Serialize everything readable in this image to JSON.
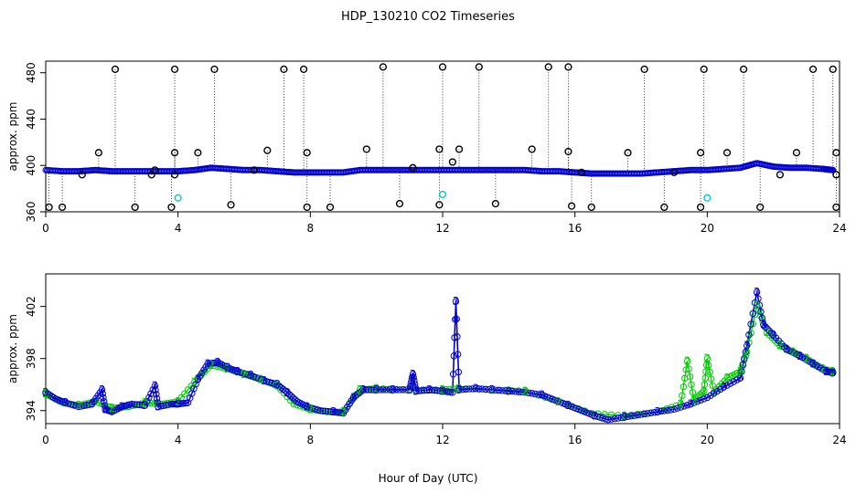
{
  "figure": {
    "title": "HDP_130210  CO2 Timeseries",
    "xlabel": "Hour of Day (UTC)"
  },
  "chart_data": [
    {
      "type": "scatter",
      "panel": "top",
      "ylabel": "approx. ppm",
      "xlim": [
        0,
        24
      ],
      "ylim": [
        360,
        490
      ],
      "xticks": [
        "0",
        "4",
        "8",
        "12",
        "16",
        "20",
        "24"
      ],
      "yticks": [
        "360",
        "400",
        "440",
        "480"
      ],
      "grid": false,
      "baseline": [
        [
          0.0,
          396
        ],
        [
          0.5,
          395
        ],
        [
          1.0,
          395
        ],
        [
          1.5,
          396
        ],
        [
          2.0,
          395
        ],
        [
          2.5,
          395
        ],
        [
          3.0,
          395
        ],
        [
          3.5,
          395
        ],
        [
          4.0,
          395
        ],
        [
          4.5,
          396
        ],
        [
          5.0,
          398
        ],
        [
          5.5,
          397
        ],
        [
          6.0,
          396
        ],
        [
          6.5,
          396
        ],
        [
          7.0,
          395
        ],
        [
          7.5,
          394
        ],
        [
          8.0,
          394
        ],
        [
          8.5,
          394
        ],
        [
          9.0,
          394
        ],
        [
          9.5,
          396
        ],
        [
          10.0,
          396
        ],
        [
          10.5,
          396
        ],
        [
          11.0,
          396
        ],
        [
          11.5,
          396
        ],
        [
          12.0,
          396
        ],
        [
          12.5,
          396
        ],
        [
          13.0,
          396
        ],
        [
          13.5,
          396
        ],
        [
          14.0,
          396
        ],
        [
          14.5,
          396
        ],
        [
          15.0,
          395
        ],
        [
          15.5,
          395
        ],
        [
          16.0,
          394
        ],
        [
          16.5,
          393
        ],
        [
          17.0,
          393
        ],
        [
          17.5,
          393
        ],
        [
          18.0,
          393
        ],
        [
          18.5,
          394
        ],
        [
          19.0,
          395
        ],
        [
          19.5,
          396
        ],
        [
          20.0,
          396
        ],
        [
          20.5,
          397
        ],
        [
          21.0,
          398
        ],
        [
          21.5,
          402
        ],
        [
          22.0,
          399
        ],
        [
          22.5,
          398
        ],
        [
          23.0,
          398
        ],
        [
          23.5,
          397
        ],
        [
          23.8,
          396
        ]
      ],
      "outliers": [
        [
          0.1,
          364
        ],
        [
          0.5,
          364
        ],
        [
          1.1,
          392
        ],
        [
          1.6,
          411
        ],
        [
          2.1,
          483
        ],
        [
          2.7,
          364
        ],
        [
          3.2,
          392
        ],
        [
          3.3,
          396
        ],
        [
          3.8,
          364
        ],
        [
          3.9,
          392
        ],
        [
          3.9,
          411
        ],
        [
          3.9,
          483
        ],
        [
          4.6,
          411
        ],
        [
          5.1,
          483
        ],
        [
          5.6,
          366
        ],
        [
          6.3,
          396
        ],
        [
          6.7,
          413
        ],
        [
          7.2,
          483
        ],
        [
          7.8,
          483
        ],
        [
          7.9,
          411
        ],
        [
          7.9,
          364
        ],
        [
          8.6,
          364
        ],
        [
          9.7,
          414
        ],
        [
          10.2,
          485
        ],
        [
          10.7,
          367
        ],
        [
          11.1,
          398
        ],
        [
          11.9,
          366
        ],
        [
          11.9,
          414
        ],
        [
          12.0,
          485
        ],
        [
          12.3,
          403
        ],
        [
          12.5,
          414
        ],
        [
          13.1,
          485
        ],
        [
          13.6,
          367
        ],
        [
          14.7,
          414
        ],
        [
          15.2,
          485
        ],
        [
          15.8,
          485
        ],
        [
          15.8,
          412
        ],
        [
          15.9,
          365
        ],
        [
          16.2,
          394
        ],
        [
          16.5,
          364
        ],
        [
          17.6,
          411
        ],
        [
          18.1,
          483
        ],
        [
          18.7,
          364
        ],
        [
          19.0,
          394
        ],
        [
          19.8,
          364
        ],
        [
          19.8,
          411
        ],
        [
          19.9,
          483
        ],
        [
          20.6,
          411
        ],
        [
          21.1,
          483
        ],
        [
          21.6,
          364
        ],
        [
          22.2,
          392
        ],
        [
          22.7,
          411
        ],
        [
          23.2,
          483
        ],
        [
          23.8,
          483
        ],
        [
          23.9,
          411
        ],
        [
          23.9,
          392
        ],
        [
          23.9,
          364
        ]
      ],
      "cyan_points": [
        [
          4.0,
          372
        ],
        [
          12.0,
          375
        ],
        [
          20.0,
          372
        ]
      ]
    },
    {
      "type": "line",
      "panel": "bottom",
      "ylabel": "approx. ppm",
      "xlim": [
        0,
        24
      ],
      "ylim": [
        393,
        404.5
      ],
      "xticks": [
        "0",
        "4",
        "8",
        "12",
        "16",
        "20",
        "24"
      ],
      "yticks": [
        "394",
        "398",
        "402"
      ],
      "grid": false,
      "marker_labels": [
        "2",
        "3"
      ],
      "series": [
        {
          "marker": "3",
          "points": [
            [
              0.0,
              395.4
            ],
            [
              0.3,
              394.9
            ],
            [
              0.6,
              394.6
            ],
            [
              1.0,
              394.3
            ],
            [
              1.4,
              394.5
            ],
            [
              1.7,
              395.6
            ],
            [
              1.8,
              394.1
            ],
            [
              2.0,
              393.9
            ],
            [
              2.3,
              394.3
            ],
            [
              2.6,
              394.5
            ],
            [
              3.0,
              394.4
            ],
            [
              3.3,
              395.9
            ],
            [
              3.4,
              394.3
            ],
            [
              3.8,
              394.5
            ],
            [
              4.0,
              394.5
            ],
            [
              4.3,
              394.6
            ],
            [
              4.6,
              396.4
            ],
            [
              4.9,
              397.6
            ],
            [
              5.2,
              397.7
            ],
            [
              5.5,
              397.3
            ],
            [
              5.8,
              397.0
            ],
            [
              6.2,
              396.7
            ],
            [
              6.6,
              396.3
            ],
            [
              7.0,
              396.0
            ],
            [
              7.3,
              395.4
            ],
            [
              7.6,
              394.7
            ],
            [
              7.9,
              394.3
            ],
            [
              8.3,
              394.0
            ],
            [
              8.7,
              393.9
            ],
            [
              9.0,
              393.8
            ],
            [
              9.3,
              395.0
            ],
            [
              9.6,
              395.6
            ],
            [
              10.0,
              395.6
            ],
            [
              10.5,
              395.6
            ],
            [
              11.0,
              395.6
            ],
            [
              11.1,
              396.8
            ],
            [
              11.2,
              395.5
            ],
            [
              11.6,
              395.6
            ],
            [
              12.0,
              395.5
            ],
            [
              12.3,
              395.4
            ],
            [
              12.4,
              402.4
            ],
            [
              12.5,
              395.6
            ],
            [
              13.0,
              395.7
            ],
            [
              13.5,
              395.6
            ],
            [
              14.0,
              395.5
            ],
            [
              14.5,
              395.4
            ],
            [
              15.0,
              395.2
            ],
            [
              15.4,
              394.8
            ],
            [
              15.8,
              394.4
            ],
            [
              16.2,
              394.0
            ],
            [
              16.6,
              393.6
            ],
            [
              17.0,
              393.3
            ],
            [
              17.5,
              393.5
            ],
            [
              18.0,
              393.7
            ],
            [
              18.5,
              393.9
            ],
            [
              19.0,
              394.1
            ],
            [
              19.5,
              394.5
            ],
            [
              20.0,
              395.0
            ],
            [
              20.5,
              395.8
            ],
            [
              21.0,
              396.5
            ],
            [
              21.2,
              399.0
            ],
            [
              21.5,
              403.1
            ],
            [
              21.7,
              400.6
            ],
            [
              22.0,
              399.8
            ],
            [
              22.4,
              398.7
            ],
            [
              22.8,
              398.2
            ],
            [
              23.2,
              397.6
            ],
            [
              23.6,
              397.0
            ],
            [
              23.8,
              396.9
            ]
          ]
        },
        {
          "marker": "2",
          "points": [
            [
              0.0,
              395.3
            ],
            [
              0.5,
              394.6
            ],
            [
              1.0,
              394.4
            ],
            [
              1.5,
              394.7
            ],
            [
              2.0,
              394.2
            ],
            [
              2.5,
              394.3
            ],
            [
              3.0,
              394.6
            ],
            [
              3.5,
              394.5
            ],
            [
              4.0,
              394.7
            ],
            [
              4.5,
              396.2
            ],
            [
              5.0,
              397.5
            ],
            [
              5.5,
              397.2
            ],
            [
              6.0,
              396.8
            ],
            [
              6.5,
              396.4
            ],
            [
              7.0,
              395.9
            ],
            [
              7.5,
              394.5
            ],
            [
              8.0,
              394.1
            ],
            [
              8.5,
              393.9
            ],
            [
              9.0,
              393.9
            ],
            [
              9.5,
              395.6
            ],
            [
              10.0,
              395.7
            ],
            [
              11.0,
              395.6
            ],
            [
              12.0,
              395.6
            ],
            [
              12.5,
              395.7
            ],
            [
              13.5,
              395.6
            ],
            [
              14.5,
              395.5
            ],
            [
              15.5,
              394.7
            ],
            [
              16.5,
              393.8
            ],
            [
              17.5,
              393.6
            ],
            [
              18.5,
              393.9
            ],
            [
              19.2,
              394.5
            ],
            [
              19.4,
              397.8
            ],
            [
              19.6,
              394.8
            ],
            [
              19.9,
              395.5
            ],
            [
              20.0,
              398.0
            ],
            [
              20.2,
              395.4
            ],
            [
              20.6,
              396.5
            ],
            [
              21.0,
              397.0
            ],
            [
              21.2,
              398.5
            ],
            [
              21.5,
              402.1
            ],
            [
              21.8,
              400.0
            ],
            [
              22.2,
              399.0
            ],
            [
              22.6,
              398.5
            ],
            [
              23.0,
              398.0
            ],
            [
              23.5,
              397.2
            ],
            [
              23.8,
              397.0
            ]
          ]
        }
      ]
    }
  ]
}
